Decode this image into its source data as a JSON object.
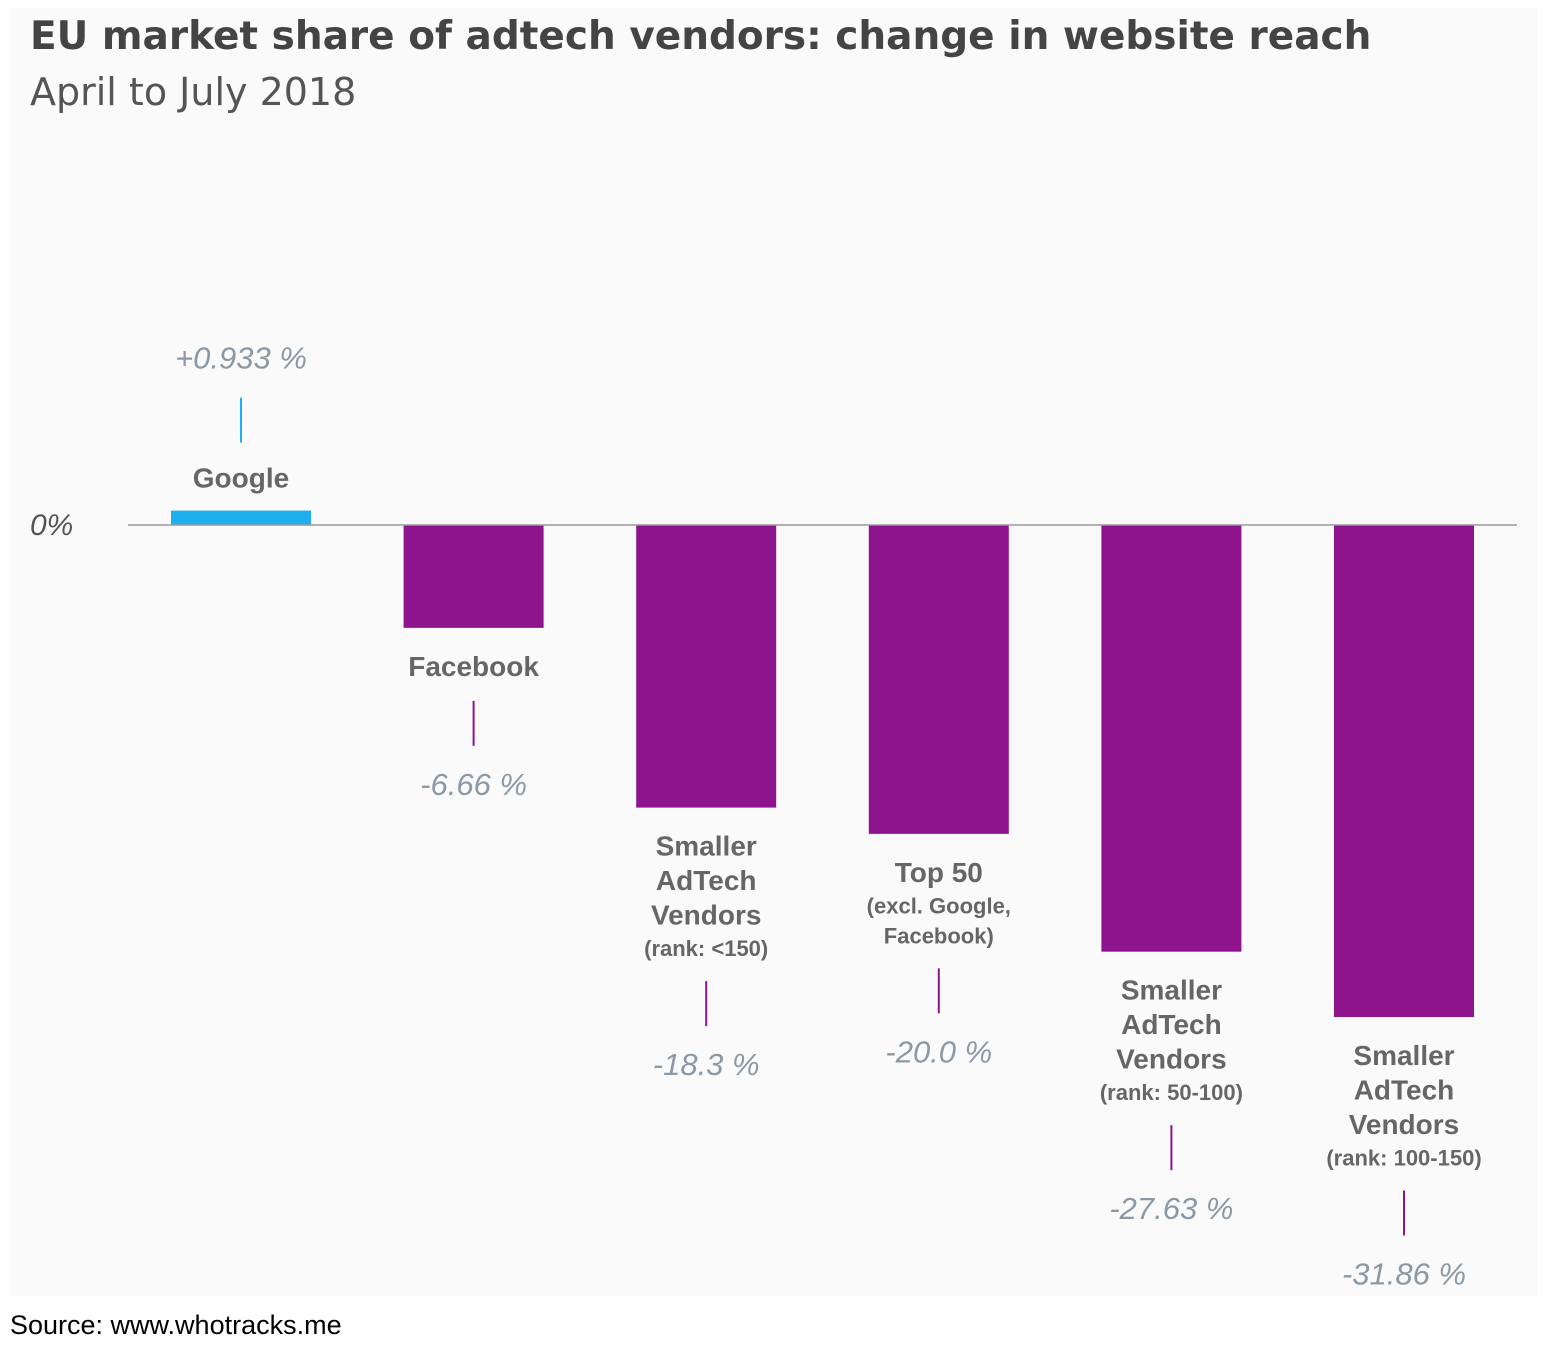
{
  "title": "EU market share of adtech vendors: change in website reach",
  "subtitle": "April to July 2018",
  "source": "Source: www.whotracks.me",
  "colors": {
    "positive": "#1eb0ee",
    "negative": "#8e148e",
    "value_label": "#8a99a6",
    "category_label": "#666666",
    "baseline": "#999999"
  },
  "chart_data": {
    "type": "bar",
    "zero_label": "0%",
    "categories": [
      {
        "lines": [
          "Google"
        ],
        "sub": []
      },
      {
        "lines": [
          "Facebook"
        ],
        "sub": []
      },
      {
        "lines": [
          "Smaller",
          "AdTech",
          "Vendors"
        ],
        "sub": [
          "(rank: <150)"
        ]
      },
      {
        "lines": [
          "Top 50"
        ],
        "sub": [
          "(excl. Google,",
          "Facebook)"
        ]
      },
      {
        "lines": [
          "Smaller",
          "AdTech",
          "Vendors"
        ],
        "sub": [
          "(rank: 50-100)"
        ]
      },
      {
        "lines": [
          "Smaller",
          "AdTech",
          "Vendors"
        ],
        "sub": [
          "(rank: 100-150)"
        ]
      }
    ],
    "values": [
      0.933,
      -6.66,
      -18.3,
      -20.0,
      -27.63,
      -31.86
    ],
    "value_labels": [
      "+0.933 %",
      "-6.66 %",
      "-18.3 %",
      "-20.0 %",
      "-27.63 %",
      "-31.86 %"
    ],
    "ylim": [
      -33,
      1
    ],
    "grid": false,
    "legend": "none"
  }
}
